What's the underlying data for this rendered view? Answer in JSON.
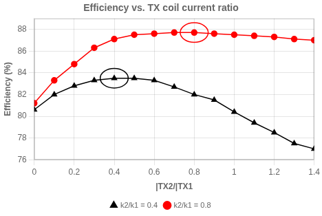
{
  "chart_data": {
    "type": "line",
    "title": "Efficiency vs. TX coil current ratio",
    "xlabel": "|TX2/|TX1",
    "ylabel": "Efficiency (%)",
    "x": [
      0,
      0.1,
      0.2,
      0.3,
      0.4,
      0.5,
      0.6,
      0.7,
      0.8,
      0.9,
      1.0,
      1.1,
      1.2,
      1.3,
      1.4
    ],
    "series": [
      {
        "name": "k2/k1 = 0.4",
        "color": "#000000",
        "marker": "triangle",
        "values": [
          80.6,
          82.0,
          82.8,
          83.3,
          83.5,
          83.5,
          83.3,
          82.7,
          82.0,
          81.5,
          80.4,
          79.4,
          78.5,
          77.5,
          77.0
        ]
      },
      {
        "name": "k2/k1 = 0.8",
        "color": "#ff0000",
        "marker": "circle",
        "values": [
          81.2,
          83.3,
          84.8,
          86.3,
          87.1,
          87.5,
          87.6,
          87.7,
          87.7,
          87.6,
          87.5,
          87.4,
          87.3,
          87.1,
          87.0
        ]
      }
    ],
    "ellipses": [
      {
        "x": 0.4,
        "y": 83.5,
        "width": 0.14,
        "height": 1.8,
        "color": "#000000"
      },
      {
        "x": 0.8,
        "y": 87.7,
        "width": 0.14,
        "height": 1.8,
        "color": "#ff0000"
      }
    ],
    "xlim": [
      0,
      1.4
    ],
    "xticks": [
      0,
      0.2,
      0.4,
      0.6,
      0.8,
      1,
      1.2,
      1.4
    ],
    "ylim": [
      76,
      89
    ],
    "yticks": [
      76,
      78,
      80,
      82,
      84,
      86,
      88
    ],
    "grid": true,
    "legend": "lower center"
  }
}
